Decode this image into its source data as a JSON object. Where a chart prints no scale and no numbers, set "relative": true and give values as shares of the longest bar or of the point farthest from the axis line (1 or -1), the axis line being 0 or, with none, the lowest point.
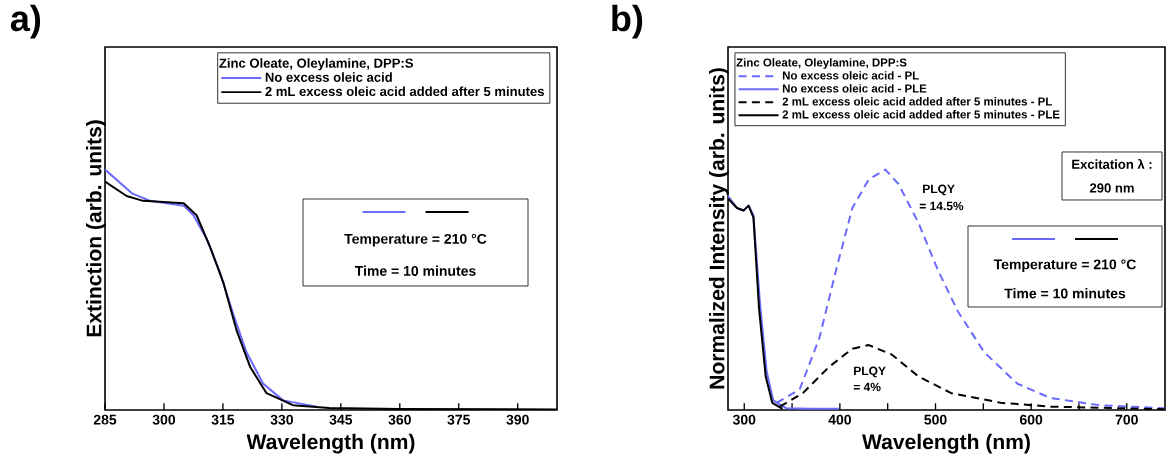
{
  "chart_data": [
    {
      "type": "line",
      "title": "a)",
      "xlabel": "Wavelength (nm)",
      "ylabel": "Extinction (arb. units)",
      "relative": true,
      "tick_labels": "x",
      "legend": "top right",
      "legend_title": "Zinc Oleate, Oleylamine, DPP:S",
      "xlim": [
        285,
        400
      ],
      "xticks": [
        285,
        300,
        315,
        330,
        345,
        360,
        375,
        390
      ],
      "series": [
        {
          "name": "No excess oleic acid",
          "color": "#6a6aff",
          "line_style": "solid",
          "x": [
            285,
            292,
            296.5,
            305,
            307.5,
            310.9,
            314.3,
            317.6,
            321,
            325.2,
            330.3,
            338.9
          ],
          "values": [
            1.0,
            0.9,
            0.87,
            0.85,
            0.81,
            0.71,
            0.57,
            0.4,
            0.24,
            0.11,
            0.04,
            0.014
          ]
        },
        {
          "name": "2 mL excess oleic acid added after 5 minutes",
          "color": "#000000",
          "line_style": "solid",
          "x": [
            285,
            290.5,
            294.7,
            305,
            308.3,
            311.7,
            315.1,
            318.5,
            321.9,
            326.1,
            332.8,
            342,
            360,
            400
          ],
          "values": [
            0.95,
            0.89,
            0.87,
            0.86,
            0.81,
            0.68,
            0.53,
            0.33,
            0.18,
            0.07,
            0.02,
            0.008,
            0.004,
            0.002
          ]
        }
      ],
      "annotations": [
        "Temperature = 210 °C",
        "Time = 10 minutes"
      ]
    },
    {
      "type": "line",
      "title": "b)",
      "xlabel": "Wavelength (nm)",
      "ylabel": "Normalized Intensity (arb. units)",
      "relative": true,
      "tick_labels": "x",
      "legend": "top left",
      "legend_title": "Zinc Oleate, Oleylamine, DPP:S",
      "xlim": [
        283,
        740
      ],
      "xticks": [
        300,
        {
          "value": 350,
          "label": null
        },
        400,
        {
          "value": 450,
          "label": null
        },
        500,
        {
          "value": 550,
          "label": null
        },
        600,
        {
          "value": 650,
          "label": null
        },
        700
      ],
      "series": [
        {
          "name": "No excess oleic acid - PL",
          "color": "#6a6aff",
          "line_style": "dashed",
          "x": [
            333.8,
            357.9,
            378.6,
            395.9,
            413,
            430.3,
            447.6,
            461.3,
            482,
            502.7,
            523.4,
            551,
            585.4,
            619.9,
            671.6,
            739.5
          ],
          "values": [
            0.03,
            0.085,
            0.3,
            0.58,
            0.84,
            0.96,
            1.0,
            0.94,
            0.78,
            0.58,
            0.41,
            0.24,
            0.11,
            0.05,
            0.02,
            0.007
          ]
        },
        {
          "name": "No excess oleic acid - PLE",
          "color": "#6a6aff",
          "line_style": "solid",
          "x": [
            283,
            292.4,
            299.3,
            304.5,
            309.6,
            316.5,
            323.4,
            330.3,
            344.1,
            370,
            399
          ],
          "values": [
            0.89,
            0.84,
            0.83,
            0.85,
            0.81,
            0.44,
            0.16,
            0.04,
            0.007,
            0.005,
            0.005
          ]
        },
        {
          "name": "2 mL excess oleic acid added after 5 minutes - PL",
          "color": "#000000",
          "line_style": "dashed",
          "x": [
            337.2,
            361.3,
            388.9,
            413,
            430.3,
            454.5,
            482,
            516.5,
            568.2,
            619.9,
            739.5
          ],
          "values": [
            0.014,
            0.07,
            0.18,
            0.255,
            0.27,
            0.23,
            0.14,
            0.07,
            0.03,
            0.014,
            0.003
          ]
        },
        {
          "name": "2 mL excess oleic acid added after 5 minutes - PLE",
          "color": "#000000",
          "line_style": "solid",
          "x": [
            283,
            292.4,
            299.3,
            304.5,
            309.6,
            315.5,
            322.4,
            329.3,
            340
          ],
          "values": [
            0.88,
            0.84,
            0.83,
            0.85,
            0.8,
            0.42,
            0.14,
            0.03,
            0.005
          ]
        }
      ],
      "annotations": [
        "Excitation λ :",
        "290 nm",
        "Temperature = 210 °C",
        "Time = 10 minutes",
        "PLQY",
        "= 14.5%",
        "PLQY",
        "= 4%"
      ]
    }
  ]
}
